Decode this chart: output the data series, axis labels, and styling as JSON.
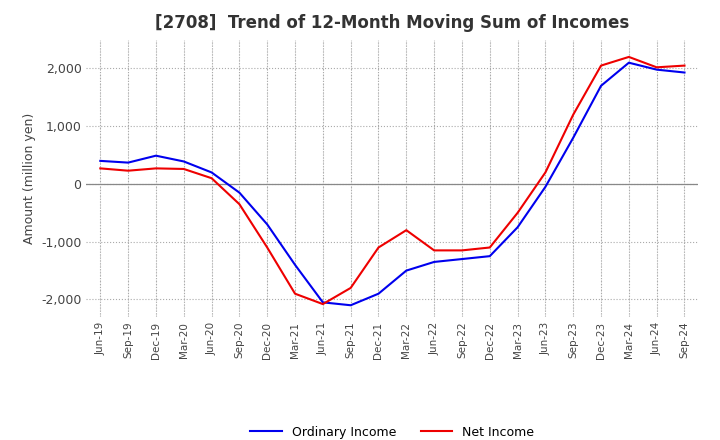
{
  "title": "[2708]  Trend of 12-Month Moving Sum of Incomes",
  "ylabel": "Amount (million yen)",
  "title_color": "#333333",
  "background_color": "#ffffff",
  "grid_color": "#aaaaaa",
  "ordinary_income_color": "#0000ee",
  "net_income_color": "#ee0000",
  "ylim": [
    -2300,
    2500
  ],
  "yticks": [
    -2000,
    -1000,
    0,
    1000,
    2000
  ],
  "x_labels": [
    "Jun-19",
    "Sep-19",
    "Dec-19",
    "Mar-20",
    "Jun-20",
    "Sep-20",
    "Dec-20",
    "Mar-21",
    "Jun-21",
    "Sep-21",
    "Dec-21",
    "Mar-22",
    "Jun-22",
    "Sep-22",
    "Dec-22",
    "Mar-23",
    "Jun-23",
    "Sep-23",
    "Dec-23",
    "Mar-24",
    "Jun-24",
    "Sep-24"
  ],
  "ordinary_income": [
    400,
    370,
    490,
    390,
    200,
    -150,
    -700,
    -1400,
    -2050,
    -2100,
    -1900,
    -1500,
    -1350,
    -1300,
    -1250,
    -750,
    -50,
    800,
    1700,
    2100,
    1980,
    1930
  ],
  "net_income": [
    270,
    230,
    270,
    260,
    100,
    -350,
    -1100,
    -1900,
    -2080,
    -1800,
    -1100,
    -800,
    -1150,
    -1150,
    -1100,
    -500,
    200,
    1200,
    2050,
    2200,
    2020,
    2050
  ]
}
